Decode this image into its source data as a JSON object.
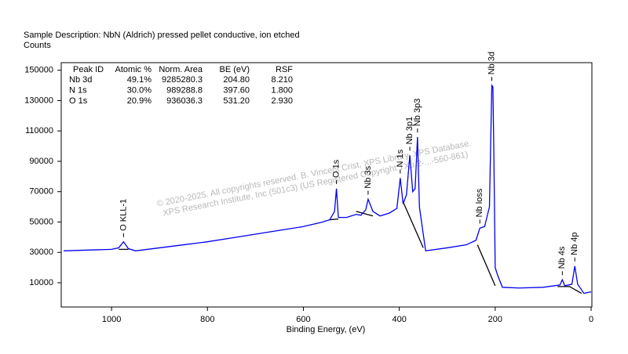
{
  "chart_data": {
    "type": "line",
    "description": "Sample Description:   NbN (Aldrich) pressed pellet conductive, ion etched",
    "ylabel": "Counts",
    "xlabel": "Binding Energy, (eV)",
    "xlim": [
      1100,
      0
    ],
    "ylim": [
      -6000,
      155000
    ],
    "xticks": [
      1000,
      800,
      600,
      400,
      200,
      0
    ],
    "yticks": [
      10000,
      30000,
      50000,
      70000,
      90000,
      110000,
      130000,
      150000
    ],
    "x": [
      1100,
      1050,
      1000,
      985,
      975,
      965,
      950,
      900,
      850,
      800,
      750,
      700,
      650,
      600,
      560,
      545,
      535,
      531,
      527,
      510,
      490,
      480,
      470,
      465,
      455,
      440,
      420,
      405,
      398,
      392,
      385,
      378,
      372,
      367,
      362,
      358,
      350,
      345,
      300,
      260,
      240,
      232,
      222,
      212,
      207,
      204.8,
      203,
      200,
      195,
      185,
      150,
      100,
      65,
      60,
      55,
      40,
      34,
      28,
      15,
      0
    ],
    "series": [
      {
        "color": "#0000ee",
        "values": [
          31000,
          31500,
          32000,
          33000,
          37000,
          32500,
          31000,
          33000,
          35000,
          37000,
          39500,
          42000,
          44500,
          47000,
          50000,
          51500,
          57000,
          72000,
          53000,
          53000,
          55000,
          54500,
          58000,
          65000,
          57000,
          54000,
          56000,
          59000,
          79000,
          62000,
          68000,
          94000,
          70000,
          72000,
          106000,
          60000,
          42000,
          31000,
          33000,
          35000,
          38000,
          46000,
          47000,
          60000,
          140000,
          139000,
          100000,
          20000,
          15000,
          7000,
          6500,
          7000,
          8500,
          12000,
          8000,
          9000,
          21000,
          9000,
          3000,
          4000
        ]
      }
    ],
    "background": {
      "color": "#000000",
      "x": [
        985,
        965,
        null,
        545,
        527,
        null,
        490,
        455,
        null,
        393,
        350,
        null,
        237,
        200,
        null,
        70,
        45,
        20
      ],
      "values": [
        32000,
        32000,
        null,
        51500,
        52000,
        null,
        57000,
        54000,
        null,
        64000,
        33000,
        null,
        35000,
        8000,
        null,
        7500,
        7500,
        3000
      ]
    },
    "annotations": [
      {
        "text": "O KLL-1",
        "x": 975,
        "y": 40000
      },
      {
        "text": "O 1s",
        "x": 531,
        "y": 75000
      },
      {
        "text": "Nb 3s",
        "x": 465,
        "y": 68000
      },
      {
        "text": "N 1s",
        "x": 398,
        "y": 82000
      },
      {
        "text": "Nb 3p1",
        "x": 378,
        "y": 97000
      },
      {
        "text": "Nb 3p3",
        "x": 362,
        "y": 109000
      },
      {
        "text": "Nb 3d",
        "x": 207,
        "y": 143000
      },
      {
        "text": "Nb loss",
        "x": 232,
        "y": 49000
      },
      {
        "text": "Nb 4s",
        "x": 60,
        "y": 15000
      },
      {
        "text": "Nb 4p",
        "x": 34,
        "y": 24000
      }
    ],
    "watermark": [
      "©  2020-2025.  All copyrights reserved.   B. Vincent Crist,   XPS Library,   XPS Database.",
      "XPS Research Institute, Inc (501c3)   (US Registered Copyright  TXu 2-...-560-861)"
    ],
    "peak_table": {
      "columns": [
        "Peak ID",
        "Atomic %",
        "Norm. Area",
        "BE (eV)",
        "RSF"
      ],
      "rows": [
        [
          "Nb 3d",
          "49.1%",
          "9285280.3",
          "204.80",
          "8.210"
        ],
        [
          "N 1s",
          "30.0%",
          "989288.8",
          "397.60",
          "1.800"
        ],
        [
          "O 1s",
          "20.9%",
          "936036.3",
          "531.20",
          "2.930"
        ]
      ]
    }
  }
}
